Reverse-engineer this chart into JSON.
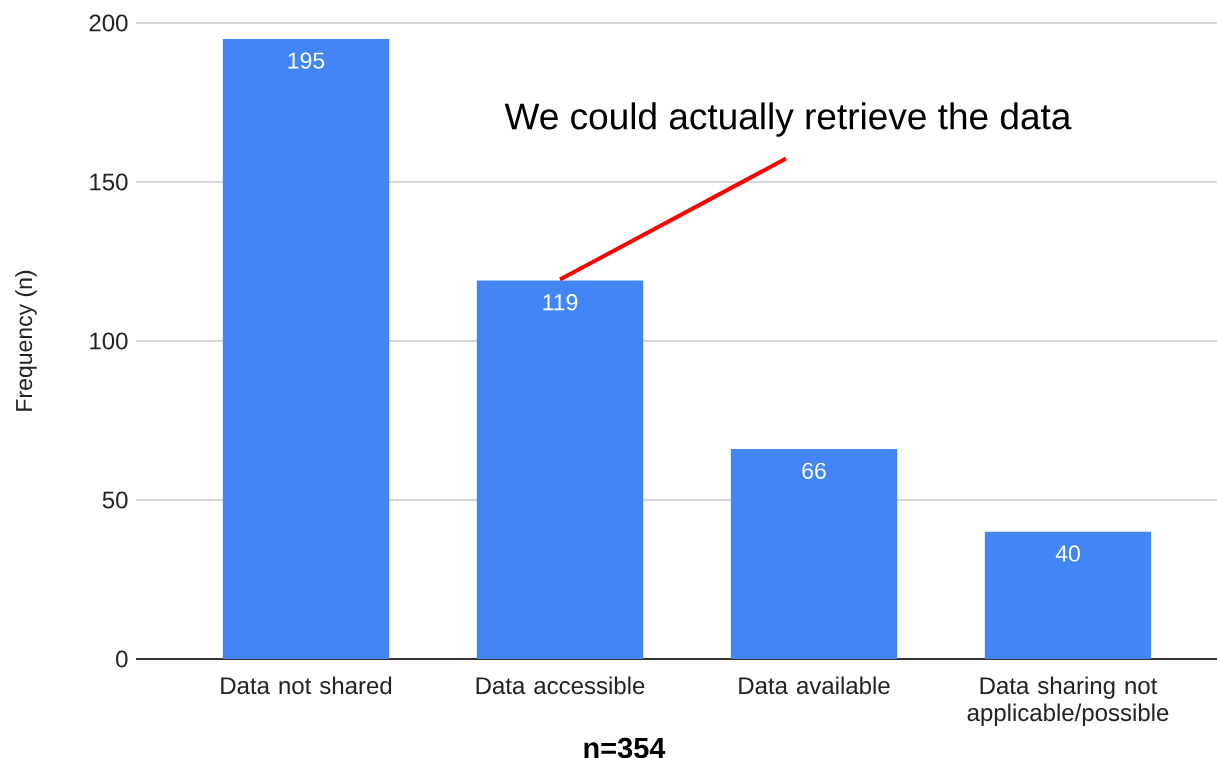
{
  "chart_data": {
    "type": "bar",
    "categories": [
      "Data not shared",
      "Data accessible",
      "Data available",
      "Data sharing not applicable/possible"
    ],
    "values": [
      195,
      119,
      66,
      40
    ],
    "color": "#4285f4",
    "ylim": [
      0,
      200
    ],
    "yticks": [
      0,
      50,
      100,
      150,
      200
    ],
    "grid": "y",
    "ylabel": "Frequency (n)",
    "xlabel": "n=354",
    "data_labels": true,
    "annotations": [
      {
        "text": "We could actually retrieve the data",
        "x": "Data accessible",
        "y": 119
      }
    ]
  }
}
